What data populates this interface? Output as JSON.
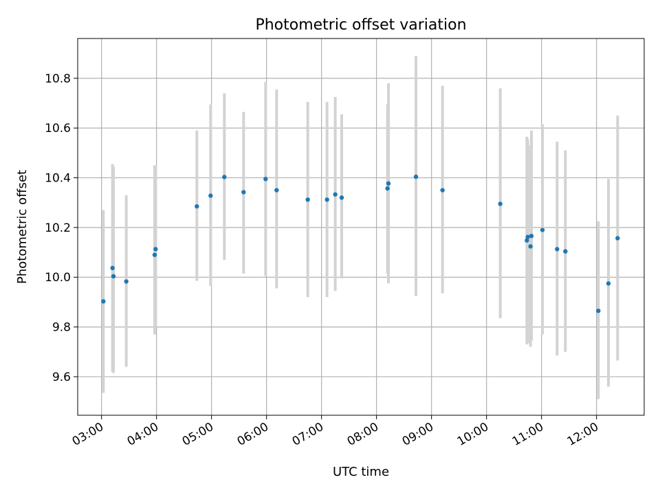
{
  "chart_data": {
    "type": "scatter",
    "title": "Photometric offset variation",
    "xlabel": "UTC time",
    "ylabel": "Photometric offset",
    "grid": true,
    "legend": "none",
    "x_ticks": [
      "03:00",
      "04:00",
      "05:00",
      "06:00",
      "07:00",
      "08:00",
      "09:00",
      "10:00",
      "11:00",
      "12:00"
    ],
    "y_ticks": [
      "9.6",
      "9.8",
      "10.0",
      "10.2",
      "10.4",
      "10.6",
      "10.8"
    ],
    "y_tick_values": [
      9.6,
      9.8,
      10.0,
      10.2,
      10.4,
      10.6,
      10.8
    ],
    "xlim": [
      "02:34",
      "12:52"
    ],
    "ylim": [
      9.445,
      10.96
    ],
    "colors": {
      "point": "#1f77b4",
      "errorbar": "#d3d3d3",
      "grid": "#b0b0b0"
    },
    "points": [
      {
        "x": "03:02",
        "y": 9.903,
        "ylo": 9.535,
        "yhi": 10.27
      },
      {
        "x": "03:12",
        "y": 10.037,
        "ylo": 9.62,
        "yhi": 10.455
      },
      {
        "x": "03:13",
        "y": 10.004,
        "ylo": 9.615,
        "yhi": 10.445
      },
      {
        "x": "03:27",
        "y": 9.983,
        "ylo": 9.64,
        "yhi": 10.33
      },
      {
        "x": "03:58",
        "y": 10.09,
        "ylo": 9.77,
        "yhi": 10.45
      },
      {
        "x": "03:59",
        "y": 10.113,
        "ylo": 9.8,
        "yhi": 10.45
      },
      {
        "x": "04:44",
        "y": 10.285,
        "ylo": 9.985,
        "yhi": 10.59
      },
      {
        "x": "04:59",
        "y": 10.328,
        "ylo": 9.965,
        "yhi": 10.695
      },
      {
        "x": "05:14",
        "y": 10.403,
        "ylo": 10.07,
        "yhi": 10.74
      },
      {
        "x": "05:35",
        "y": 10.342,
        "ylo": 10.015,
        "yhi": 10.665
      },
      {
        "x": "05:59",
        "y": 10.395,
        "ylo": 10.005,
        "yhi": 10.785
      },
      {
        "x": "06:11",
        "y": 10.35,
        "ylo": 9.955,
        "yhi": 10.755
      },
      {
        "x": "06:45",
        "y": 10.312,
        "ylo": 9.92,
        "yhi": 10.705
      },
      {
        "x": "07:06",
        "y": 10.312,
        "ylo": 9.92,
        "yhi": 10.705
      },
      {
        "x": "07:15",
        "y": 10.333,
        "ylo": 9.945,
        "yhi": 10.725
      },
      {
        "x": "07:22",
        "y": 10.32,
        "ylo": 9.995,
        "yhi": 10.655
      },
      {
        "x": "08:12",
        "y": 10.357,
        "ylo": 10.015,
        "yhi": 10.695
      },
      {
        "x": "08:13",
        "y": 10.377,
        "ylo": 9.975,
        "yhi": 10.78
      },
      {
        "x": "08:43",
        "y": 10.404,
        "ylo": 9.925,
        "yhi": 10.89
      },
      {
        "x": "09:12",
        "y": 10.35,
        "ylo": 9.935,
        "yhi": 10.77
      },
      {
        "x": "10:15",
        "y": 10.295,
        "ylo": 9.835,
        "yhi": 10.76
      },
      {
        "x": "10:44",
        "y": 10.148,
        "ylo": 9.73,
        "yhi": 10.565
      },
      {
        "x": "10:45",
        "y": 10.162,
        "ylo": 9.735,
        "yhi": 10.555
      },
      {
        "x": "10:48",
        "y": 10.124,
        "ylo": 9.72,
        "yhi": 10.53
      },
      {
        "x": "10:49",
        "y": 10.166,
        "ylo": 9.745,
        "yhi": 10.59
      },
      {
        "x": "11:01",
        "y": 10.19,
        "ylo": 9.77,
        "yhi": 10.615
      },
      {
        "x": "11:17",
        "y": 10.113,
        "ylo": 9.685,
        "yhi": 10.545
      },
      {
        "x": "11:26",
        "y": 10.104,
        "ylo": 9.7,
        "yhi": 10.51
      },
      {
        "x": "12:02",
        "y": 9.865,
        "ylo": 9.51,
        "yhi": 10.225
      },
      {
        "x": "12:13",
        "y": 9.975,
        "ylo": 9.56,
        "yhi": 10.395
      },
      {
        "x": "12:23",
        "y": 10.157,
        "ylo": 9.665,
        "yhi": 10.65
      }
    ]
  }
}
